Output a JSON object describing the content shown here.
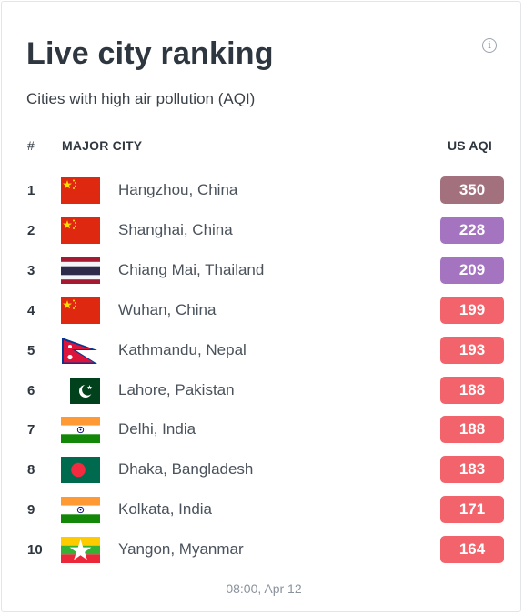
{
  "header": {
    "title": "Live city ranking",
    "subtitle": "Cities with high air pollution (AQI)",
    "info_icon": "info-icon"
  },
  "table": {
    "columns": {
      "rank": "#",
      "city": "MAJOR CITY",
      "aqi": "US AQI"
    },
    "rows": [
      {
        "rank": "1",
        "city": "Hangzhou, China",
        "flag": "china-flag-icon",
        "aqi": "350",
        "color": "#a3707d"
      },
      {
        "rank": "2",
        "city": "Shanghai, China",
        "flag": "china-flag-icon",
        "aqi": "228",
        "color": "#a574c1"
      },
      {
        "rank": "3",
        "city": "Chiang Mai, Thailand",
        "flag": "thailand-flag-icon",
        "aqi": "209",
        "color": "#a574c1"
      },
      {
        "rank": "4",
        "city": "Wuhan, China",
        "flag": "china-flag-icon",
        "aqi": "199",
        "color": "#f2636b"
      },
      {
        "rank": "5",
        "city": "Kathmandu, Nepal",
        "flag": "nepal-flag-icon",
        "aqi": "193",
        "color": "#f2636b"
      },
      {
        "rank": "6",
        "city": "Lahore, Pakistan",
        "flag": "pakistan-flag-icon",
        "aqi": "188",
        "color": "#f2636b"
      },
      {
        "rank": "7",
        "city": "Delhi, India",
        "flag": "india-flag-icon",
        "aqi": "188",
        "color": "#f2636b"
      },
      {
        "rank": "8",
        "city": "Dhaka, Bangladesh",
        "flag": "bangladesh-flag-icon",
        "aqi": "183",
        "color": "#f2636b"
      },
      {
        "rank": "9",
        "city": "Kolkata, India",
        "flag": "india-flag-icon",
        "aqi": "171",
        "color": "#f2636b"
      },
      {
        "rank": "10",
        "city": "Yangon, Myanmar",
        "flag": "myanmar-flag-icon",
        "aqi": "164",
        "color": "#f2636b"
      }
    ]
  },
  "footer": {
    "timestamp": "08:00, Apr 12"
  }
}
